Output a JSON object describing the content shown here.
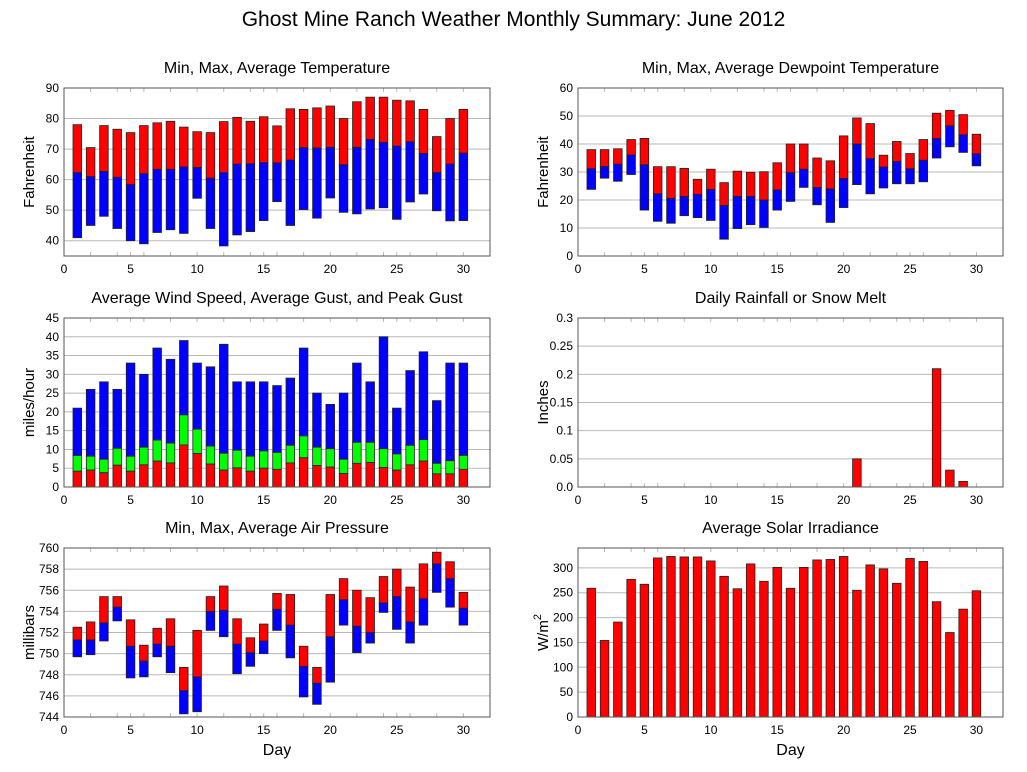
{
  "title": "Ghost Mine Ranch Weather Monthly Summary: June 2012",
  "colors": {
    "red": "#ff0000",
    "blue": "#0000ff",
    "green": "#00ff00",
    "grid": "#b8b8b8",
    "frame": "#555555"
  },
  "chart_data": [
    {
      "id": "temperature",
      "type": "bar",
      "subtype": "floating-stacked",
      "title": "Min, Max, Average Temperature",
      "xlabel": "",
      "ylabel": "Fahrenheit",
      "xlim": [
        0,
        32
      ],
      "ylim": [
        35,
        90
      ],
      "xticks": [
        0,
        5,
        10,
        15,
        20,
        25,
        30
      ],
      "yticks": [
        40,
        50,
        60,
        70,
        80,
        90
      ],
      "grid": true,
      "x": [
        1,
        2,
        3,
        4,
        5,
        6,
        7,
        8,
        9,
        10,
        11,
        12,
        13,
        14,
        15,
        16,
        17,
        18,
        19,
        20,
        21,
        22,
        23,
        24,
        25,
        26,
        27,
        28,
        29,
        30
      ],
      "series": [
        {
          "name": "Min",
          "values": [
            41,
            45,
            48,
            44,
            40,
            39,
            42.7,
            43.6,
            42.4,
            53.9,
            44,
            38.3,
            41.9,
            43,
            46.6,
            52.8,
            45,
            50.2,
            47.4,
            54,
            49.3,
            48.8,
            50.4,
            50.8,
            47,
            52.7,
            55.3,
            49.8,
            46.5,
            46.6
          ]
        },
        {
          "name": "Average",
          "values": [
            62.3,
            61,
            62.7,
            60.8,
            58.4,
            62,
            63.4,
            63.4,
            64.2,
            64,
            60.5,
            62.3,
            65.1,
            65.2,
            65.6,
            65.5,
            66.4,
            70.5,
            70.4,
            70.6,
            64.9,
            70.6,
            73.2,
            72.2,
            71,
            72.4,
            68.6,
            62.3,
            65.1,
            68.7
          ]
        },
        {
          "name": "Max",
          "values": [
            78,
            70.5,
            77.7,
            76.5,
            75.4,
            77.7,
            78.6,
            79.1,
            77.2,
            75.7,
            75.4,
            79,
            80.4,
            79.1,
            80.6,
            77.6,
            83.2,
            83,
            83.5,
            84.1,
            80,
            85.5,
            87,
            87,
            86,
            85.8,
            83,
            74.1,
            80,
            83
          ]
        }
      ],
      "fill_lower": "blue",
      "fill_upper": "red"
    },
    {
      "id": "dewpoint",
      "type": "bar",
      "subtype": "floating-stacked",
      "title": "Min, Max, Average Dewpoint Temperature",
      "xlabel": "",
      "ylabel": "Fahrenheit",
      "xlim": [
        0,
        32
      ],
      "ylim": [
        0,
        60
      ],
      "xticks": [
        0,
        5,
        10,
        15,
        20,
        25,
        30
      ],
      "yticks": [
        0,
        10,
        20,
        30,
        40,
        50,
        60
      ],
      "grid": true,
      "x": [
        1,
        2,
        3,
        4,
        5,
        6,
        7,
        8,
        9,
        10,
        11,
        12,
        13,
        14,
        15,
        16,
        17,
        18,
        19,
        20,
        21,
        22,
        23,
        24,
        25,
        26,
        27,
        28,
        29,
        30
      ],
      "series": [
        {
          "name": "Min",
          "values": [
            23.8,
            27.8,
            26.7,
            29.1,
            16.4,
            12.4,
            11.7,
            14.4,
            13.7,
            12.7,
            6,
            9.8,
            11.2,
            10.2,
            16.4,
            19.5,
            24.5,
            18.3,
            12,
            17.3,
            25.5,
            22.2,
            24.3,
            25.8,
            25.8,
            26.5,
            35,
            39,
            37,
            32.2
          ]
        },
        {
          "name": "Average",
          "values": [
            31.2,
            32,
            32.8,
            36.1,
            32.6,
            22.2,
            20.6,
            21.3,
            22,
            23.8,
            18.1,
            21.3,
            21.3,
            20,
            23.6,
            29.8,
            31,
            24.5,
            24,
            27.7,
            40,
            34.8,
            31.8,
            33.8,
            31.2,
            34.2,
            42,
            46.5,
            43.3,
            36.5
          ]
        },
        {
          "name": "Max",
          "values": [
            38,
            38,
            38.3,
            41.6,
            42,
            31.9,
            31.9,
            31.3,
            27.4,
            31,
            26.2,
            30.3,
            29.9,
            30.1,
            33.3,
            40,
            40,
            35,
            34,
            42.9,
            49.3,
            47.3,
            36,
            40.9,
            36.6,
            41.6,
            51,
            52,
            50.5,
            43.5
          ]
        }
      ],
      "fill_lower": "blue",
      "fill_upper": "red"
    },
    {
      "id": "wind",
      "type": "bar",
      "subtype": "stacked",
      "title": "Average Wind Speed, Average Gust, and Peak Gust",
      "xlabel": "",
      "ylabel": "miles/hour",
      "xlim": [
        0,
        32
      ],
      "ylim": [
        0,
        45
      ],
      "xticks": [
        0,
        5,
        10,
        15,
        20,
        25,
        30
      ],
      "yticks": [
        0,
        5,
        10,
        15,
        20,
        25,
        30,
        35,
        40,
        45
      ],
      "grid": true,
      "x": [
        1,
        2,
        3,
        4,
        5,
        6,
        7,
        8,
        9,
        10,
        11,
        12,
        13,
        14,
        15,
        16,
        17,
        18,
        19,
        20,
        21,
        22,
        23,
        24,
        25,
        26,
        27,
        28,
        29,
        30
      ],
      "series": [
        {
          "name": "Average Wind Speed",
          "color": "red",
          "values": [
            4.2,
            4.5,
            3.8,
            5.8,
            4.2,
            5.9,
            6.9,
            6.4,
            11.2,
            8.9,
            6.1,
            4.5,
            5.1,
            4.2,
            5,
            4.7,
            6.4,
            7.8,
            5.7,
            5.3,
            3.6,
            6.3,
            6.5,
            5.2,
            4.5,
            5.9,
            6.9,
            3.5,
            3.5,
            4.7
          ]
        },
        {
          "name": "Average Gust",
          "color": "green",
          "values": [
            8.4,
            8.2,
            7.4,
            10.3,
            8.2,
            10.6,
            12.5,
            11.7,
            19.2,
            15.4,
            10.9,
            9,
            9.8,
            8.2,
            9.6,
            9.2,
            11.1,
            13.6,
            10.6,
            10.2,
            7.4,
            11.9,
            11.9,
            10.2,
            8.8,
            11.1,
            12.6,
            6.3,
            7,
            8.4
          ]
        },
        {
          "name": "Peak Gust",
          "color": "blue",
          "values": [
            21,
            26,
            28,
            26,
            33,
            30,
            37,
            34,
            39,
            33,
            32,
            38,
            28,
            28,
            28,
            27,
            29,
            37,
            25,
            22,
            25,
            33,
            28,
            40,
            21,
            31,
            36,
            23,
            33,
            33
          ]
        }
      ]
    },
    {
      "id": "rainfall",
      "type": "bar",
      "title": "Daily Rainfall or Snow Melt",
      "xlabel": "",
      "ylabel": "Inches",
      "xlim": [
        0,
        32
      ],
      "ylim": [
        0,
        0.3
      ],
      "xticks": [
        0,
        5,
        10,
        15,
        20,
        25,
        30
      ],
      "yticks": [
        0,
        0.05,
        0.1,
        0.15,
        0.2,
        0.25,
        0.3
      ],
      "ytick_labels": [
        "0.0",
        "0.05",
        "0.1",
        "0.15",
        "0.2",
        "0.25",
        "0.3"
      ],
      "grid": true,
      "x": [
        1,
        2,
        3,
        4,
        5,
        6,
        7,
        8,
        9,
        10,
        11,
        12,
        13,
        14,
        15,
        16,
        17,
        18,
        19,
        20,
        21,
        22,
        23,
        24,
        25,
        26,
        27,
        28,
        29,
        30
      ],
      "values": [
        0,
        0,
        0,
        0,
        0,
        0,
        0,
        0,
        0,
        0,
        0,
        0,
        0,
        0,
        0,
        0,
        0,
        0,
        0,
        0,
        0.05,
        0,
        0,
        0,
        0,
        0,
        0.21,
        0.03,
        0.01,
        0
      ],
      "color": "red"
    },
    {
      "id": "pressure",
      "type": "bar",
      "subtype": "floating-stacked",
      "title": "Min, Max, Average Air Pressure",
      "xlabel": "Day",
      "ylabel": "millibars",
      "xlim": [
        0,
        32
      ],
      "ylim": [
        744,
        760
      ],
      "xticks": [
        0,
        5,
        10,
        15,
        20,
        25,
        30
      ],
      "yticks": [
        744,
        746,
        748,
        750,
        752,
        754,
        756,
        758,
        760
      ],
      "grid": true,
      "x": [
        1,
        2,
        3,
        4,
        5,
        6,
        7,
        8,
        9,
        10,
        11,
        12,
        13,
        14,
        15,
        16,
        17,
        18,
        19,
        20,
        21,
        22,
        23,
        24,
        25,
        26,
        27,
        28,
        29,
        30
      ],
      "series": [
        {
          "name": "Min",
          "values": [
            749.7,
            749.9,
            751.2,
            753.1,
            747.7,
            747.8,
            749.7,
            748.2,
            744.3,
            744.5,
            752.2,
            751.6,
            748.1,
            748.8,
            750,
            752.2,
            749.6,
            745.9,
            745.2,
            747.3,
            752.7,
            750.1,
            751,
            753.9,
            752.3,
            751,
            752.7,
            755.8,
            754.4,
            752.7
          ]
        },
        {
          "name": "Average",
          "values": [
            751.3,
            751.3,
            752.9,
            754.4,
            750.7,
            749.3,
            750.9,
            750.7,
            746.5,
            747.8,
            754,
            754.1,
            750.9,
            750.1,
            751.2,
            754.2,
            752.7,
            748.8,
            747.2,
            751.6,
            755.1,
            752.6,
            752,
            754.8,
            755.4,
            753,
            755.2,
            758.5,
            757.1,
            754.3
          ]
        },
        {
          "name": "Max",
          "values": [
            752.5,
            753,
            755.4,
            755.4,
            753.2,
            750.8,
            752.4,
            753.3,
            748.7,
            752.2,
            755.4,
            756.4,
            753.3,
            751.5,
            752.8,
            755.7,
            755.6,
            750.7,
            748.7,
            755.6,
            757.1,
            756,
            755.3,
            757.3,
            758,
            756.3,
            758.5,
            759.6,
            758.7,
            755.8
          ]
        }
      ],
      "fill_lower": "blue",
      "fill_upper": "red"
    },
    {
      "id": "solar",
      "type": "bar",
      "title": "Average Solar Irradiance",
      "xlabel": "Day",
      "ylabel": "W/m",
      "ylabel_superscript": "2",
      "xlim": [
        0,
        32
      ],
      "ylim": [
        0,
        340
      ],
      "xticks": [
        0,
        5,
        10,
        15,
        20,
        25,
        30
      ],
      "yticks": [
        0,
        50,
        100,
        150,
        200,
        250,
        300
      ],
      "grid": true,
      "x": [
        1,
        2,
        3,
        4,
        5,
        6,
        7,
        8,
        9,
        10,
        11,
        12,
        13,
        14,
        15,
        16,
        17,
        18,
        19,
        20,
        21,
        22,
        23,
        24,
        25,
        26,
        27,
        28,
        29,
        30
      ],
      "values": [
        259,
        154,
        191,
        277,
        267,
        320,
        323,
        322,
        322,
        314,
        283,
        258,
        308,
        273,
        301,
        259,
        301,
        316,
        317,
        323,
        255,
        306,
        298,
        269,
        319,
        313,
        232,
        170,
        217,
        254
      ],
      "color": "red"
    }
  ]
}
